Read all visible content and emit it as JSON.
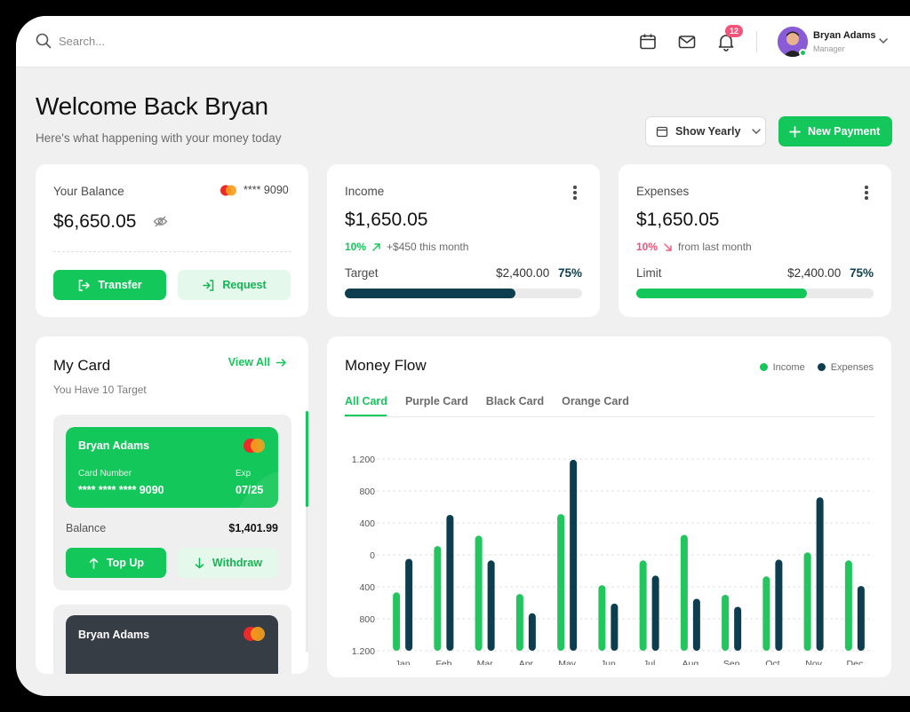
{
  "colors": {
    "green": "#14c75a",
    "dark": "#0d3e50",
    "danger": "#f2557a"
  },
  "topbar": {
    "search_placeholder": "Search...",
    "notification_count": "12",
    "user": {
      "name": "Bryan Adams",
      "role": "Manager"
    }
  },
  "header": {
    "title": "Welcome Back Bryan",
    "subtitle": "Here's what happening with your money today",
    "period_button": "Show Yearly",
    "new_payment_button": "New Payment"
  },
  "balance": {
    "label": "Your Balance",
    "card_mask": "**** 9090",
    "amount": "$6,650.05",
    "transfer": "Transfer",
    "request": "Request"
  },
  "income": {
    "label": "Income",
    "amount": "$1,650.05",
    "change_pct": "10%",
    "change_text": "+$450 this month",
    "target_label": "Target",
    "target_amount": "$2,400.00",
    "target_pct": "75%",
    "progress": 0.72
  },
  "expenses": {
    "label": "Expenses",
    "amount": "$1,650.05",
    "change_pct": "10%",
    "change_text": "from last month",
    "limit_label": "Limit",
    "limit_amount": "$2,400.00",
    "limit_pct": "75%",
    "progress": 0.72
  },
  "my_card": {
    "title": "My Card",
    "view_all": "View All",
    "subtitle": "You Have 10 Target",
    "card1": {
      "holder": "Bryan Adams",
      "number_label": "Card Number",
      "number": "**** **** **** 9090",
      "exp_label": "Exp",
      "exp": "07/25",
      "balance_label": "Balance",
      "balance": "$1,401.99",
      "top_up": "Top Up",
      "withdraw": "Withdraw"
    },
    "card2": {
      "holder": "Bryan Adams"
    }
  },
  "money_flow": {
    "title": "Money Flow",
    "tabs": [
      "All Card",
      "Purple Card",
      "Black Card",
      "Orange Card"
    ],
    "legend": {
      "income": "Income",
      "expenses": "Expenses"
    }
  },
  "chart_data": {
    "type": "bar",
    "title": "Money Flow",
    "y_tick_labels": [
      "1.200",
      "800",
      "400",
      "0",
      "400",
      "800",
      "1.200"
    ],
    "ylim": [
      -1200,
      1200
    ],
    "grid": true,
    "legend_position": "top-right",
    "categories": [
      "Jan",
      "Feb",
      "Mar",
      "Apr",
      "May",
      "Jun",
      "Jul",
      "Aug",
      "Sep",
      "Oct",
      "Nov",
      "Dec"
    ],
    "series": [
      {
        "name": "Income",
        "color": "#22c55e",
        "values": [
          -470,
          110,
          240,
          -490,
          510,
          -380,
          -70,
          250,
          -500,
          -270,
          30,
          -70
        ]
      },
      {
        "name": "Expenses",
        "color": "#0d3e50",
        "values": [
          -50,
          500,
          -70,
          -730,
          1190,
          -610,
          -260,
          -550,
          -650,
          -60,
          720,
          -390
        ]
      }
    ]
  }
}
